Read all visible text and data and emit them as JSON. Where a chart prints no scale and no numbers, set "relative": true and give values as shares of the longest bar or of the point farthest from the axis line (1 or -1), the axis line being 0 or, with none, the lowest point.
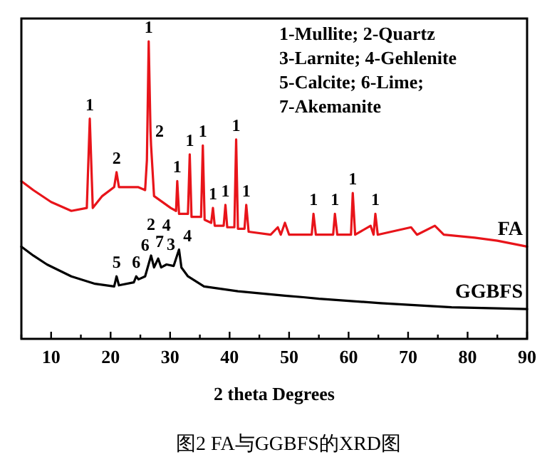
{
  "chart_data": {
    "type": "line",
    "relative": true,
    "title": "图2 FA与GGBFS的XRD图",
    "xlabel": "2 theta Degrees",
    "xlim": [
      5,
      90
    ],
    "xticks": [
      {
        "value": 5,
        "label": null
      },
      10,
      {
        "value": 15,
        "label": null
      },
      20,
      {
        "value": 25,
        "label": null
      },
      30,
      {
        "value": 35,
        "label": null
      },
      40,
      {
        "value": 45,
        "label": null
      },
      50,
      {
        "value": 55,
        "label": null
      },
      60,
      {
        "value": 65,
        "label": null
      },
      70,
      {
        "value": 75,
        "label": null
      },
      80,
      {
        "value": 85,
        "label": null
      },
      90
    ],
    "tick_labels": "x",
    "line_style": "solid",
    "series": [
      {
        "name": "FA",
        "color": "#e8141a",
        "x": [
          5,
          7,
          10,
          13.4,
          16.0,
          16.5,
          17.0,
          18.6,
          20.6,
          21,
          21.4,
          24.6,
          25.8,
          26.1,
          26.4,
          26.7,
          26.8,
          27.3,
          30.1,
          31.0,
          31.2,
          31.5,
          33.0,
          33.3,
          33.6,
          35.2,
          35.5,
          35.8,
          36.9,
          37.2,
          37.5,
          39.0,
          39.3,
          39.6,
          40.8,
          41.1,
          41.4,
          42.5,
          42.8,
          43.2,
          46.9,
          48.1,
          48.6,
          49.3,
          50,
          51.7,
          53.8,
          54.1,
          54.5,
          57.4,
          57.7,
          58.1,
          60.4,
          60.7,
          61.1,
          63.7,
          64.2,
          64.5,
          64.9,
          70.5,
          71.5,
          74.5,
          76,
          81.2,
          85,
          90
        ],
        "values": [
          0.53,
          0.5,
          0.46,
          0.43,
          0.44,
          0.74,
          0.44,
          0.48,
          0.51,
          0.56,
          0.51,
          0.51,
          0.5,
          0.6,
          1.0,
          0.7,
          0.65,
          0.48,
          0.44,
          0.43,
          0.53,
          0.42,
          0.42,
          0.62,
          0.41,
          0.41,
          0.65,
          0.4,
          0.39,
          0.44,
          0.38,
          0.38,
          0.45,
          0.375,
          0.375,
          0.67,
          0.37,
          0.37,
          0.45,
          0.36,
          0.35,
          0.375,
          0.35,
          0.39,
          0.35,
          0.35,
          0.35,
          0.42,
          0.35,
          0.35,
          0.42,
          0.35,
          0.35,
          0.49,
          0.35,
          0.38,
          0.35,
          0.42,
          0.35,
          0.375,
          0.35,
          0.38,
          0.35,
          0.34,
          0.33,
          0.31
        ]
      },
      {
        "name": "GGBFS",
        "color": "#000000",
        "x": [
          5,
          7,
          9.3,
          13.4,
          17.4,
          20.6,
          21,
          21.4,
          23.9,
          24.3,
          24.7,
          25.8,
          26.8,
          27.3,
          28,
          28.5,
          29.4,
          30.6,
          31.5,
          31.9,
          33,
          35.7,
          41.4,
          49.3,
          52.4,
          55,
          65.4,
          77.3,
          90
        ],
        "values": [
          0.31,
          0.28,
          0.25,
          0.21,
          0.185,
          0.176,
          0.21,
          0.18,
          0.19,
          0.21,
          0.2,
          0.21,
          0.28,
          0.24,
          0.27,
          0.24,
          0.25,
          0.245,
          0.3,
          0.24,
          0.21,
          0.176,
          0.16,
          0.145,
          0.14,
          0.135,
          0.12,
          0.106,
          0.1
        ]
      }
    ],
    "annotations": [
      "1-Mullite; 2-Quartz",
      "3-Larnite; 4-Gehlenite",
      "5-Calcite; 6-Lime;",
      "7-Akemanite",
      {
        "text": "1",
        "x": 16.5,
        "y": 0.74
      },
      {
        "text": "2",
        "x": 21,
        "y": 0.56
      },
      {
        "text": "1",
        "x": 26.4,
        "y": 1.0
      },
      {
        "text": "2",
        "x": 26.8,
        "y": 0.65
      },
      {
        "text": "1",
        "x": 31.2,
        "y": 0.53
      },
      {
        "text": "1",
        "x": 33.3,
        "y": 0.62
      },
      {
        "text": "1",
        "x": 35.5,
        "y": 0.65
      },
      {
        "text": "1",
        "x": 37.2,
        "y": 0.44
      },
      {
        "text": "1",
        "x": 39.3,
        "y": 0.45
      },
      {
        "text": "1",
        "x": 41.1,
        "y": 0.67
      },
      {
        "text": "1",
        "x": 42.8,
        "y": 0.45
      },
      {
        "text": "1",
        "x": 54.1,
        "y": 0.42
      },
      {
        "text": "1",
        "x": 57.7,
        "y": 0.42
      },
      {
        "text": "1",
        "x": 60.7,
        "y": 0.49
      },
      {
        "text": "1",
        "x": 64.5,
        "y": 0.42
      },
      {
        "text": "5",
        "x": 21,
        "y": 0.21
      },
      {
        "text": "6",
        "x": 24.3,
        "y": 0.21
      },
      {
        "text": "6",
        "x": 25.8,
        "y": 0.21
      },
      {
        "text": "7",
        "x": 26.8,
        "y": 0.28
      },
      {
        "text": "2",
        "x": 26.8,
        "y": 0.28
      },
      {
        "text": "3",
        "x": 28,
        "y": 0.27
      },
      {
        "text": "4",
        "x": 29.4,
        "y": 0.25
      },
      {
        "text": "4",
        "x": 31.5,
        "y": 0.3
      }
    ]
  }
}
